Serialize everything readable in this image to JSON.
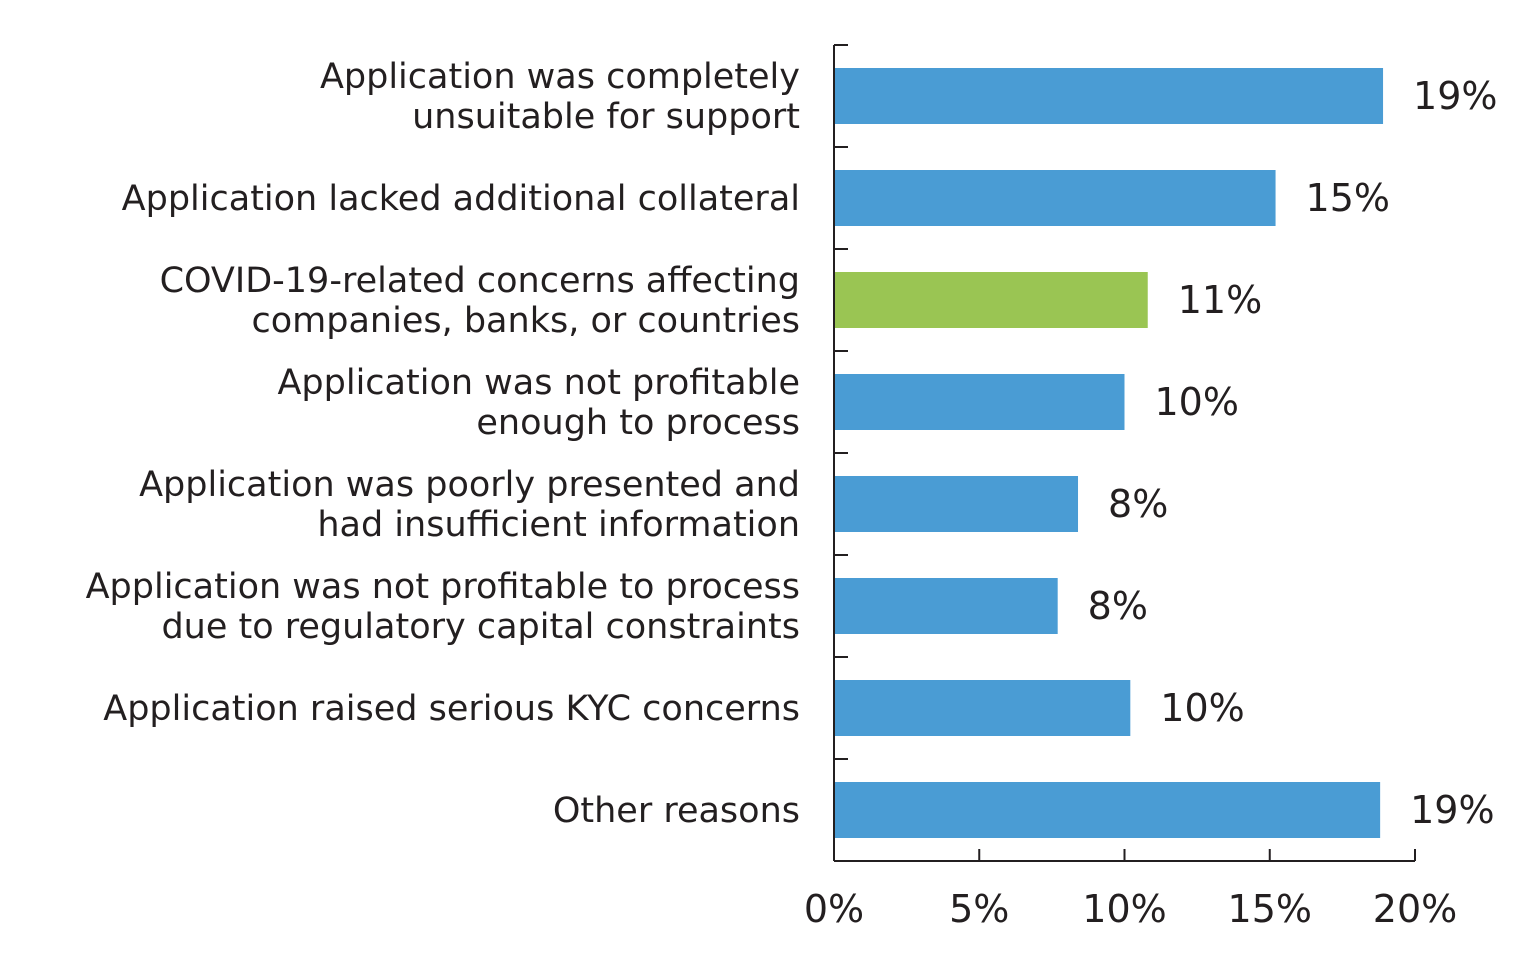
{
  "chart_data": {
    "type": "bar",
    "orientation": "horizontal",
    "categories": [
      [
        "Application was completely",
        "unsuitable for support"
      ],
      [
        "Application lacked additional collateral"
      ],
      [
        "COVID-19-related concerns affecting",
        "companies, banks, or countries"
      ],
      [
        "Application was not profitable",
        "enough to process"
      ],
      [
        "Application was poorly presented and",
        "had insufficient information"
      ],
      [
        "Application was not profitable to process",
        "due to regulatory capital constraints"
      ],
      [
        "Application raised serious KYC concerns"
      ],
      [
        "Other reasons"
      ]
    ],
    "values": [
      18.9,
      15.2,
      10.8,
      10.0,
      8.4,
      7.7,
      10.2,
      18.8
    ],
    "value_labels": [
      "19%",
      "15%",
      "11%",
      "10%",
      "8%",
      "8%",
      "10%",
      "19%"
    ],
    "highlight_index": 2,
    "xlim": [
      0,
      20
    ],
    "xticks": [
      0,
      5,
      10,
      15,
      20
    ],
    "xtick_labels": [
      "0%",
      "5%",
      "10%",
      "15%",
      "20%"
    ],
    "colors": {
      "bar": "#4a9cd4",
      "highlight": "#9ac553",
      "text": "#231f20"
    },
    "title": "",
    "xlabel": "",
    "ylabel": ""
  }
}
